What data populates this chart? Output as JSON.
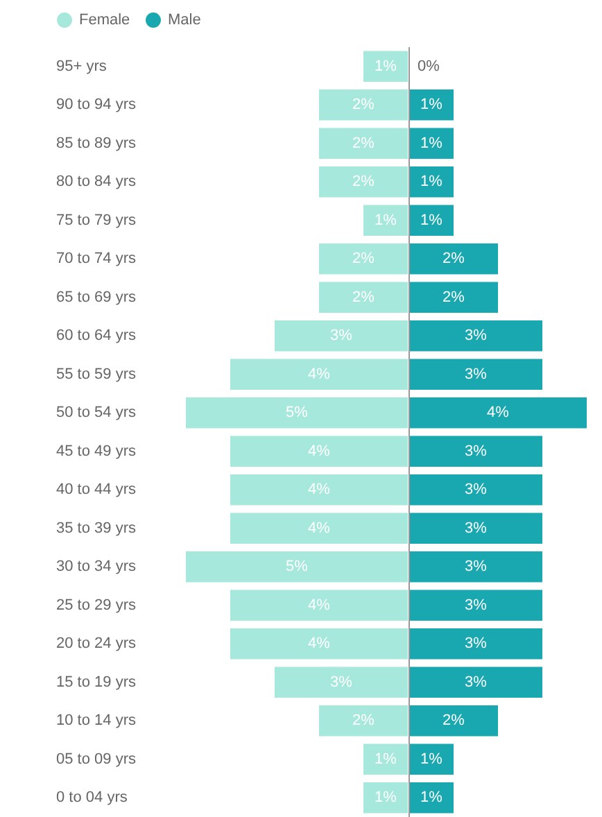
{
  "chart_data": [
    {
      "type": "bar",
      "orientation": "horizontal",
      "legend": "top left",
      "xlim": [
        5,
        0
      ],
      "tick_labels": "y",
      "categories": [
        "95+ yrs",
        "90 to 94 yrs",
        "85 to 89 yrs",
        "80 to 84 yrs",
        "75 to 79 yrs",
        "70 to 74 yrs",
        "65 to 69 yrs",
        "60 to 64 yrs",
        "55 to 59 yrs",
        "50 to 54 yrs",
        "45 to 49 yrs",
        "40 to 44 yrs",
        "35 to 39 yrs",
        "30 to 34 yrs",
        "25 to 29 yrs",
        "20 to 24 yrs",
        "15 to 19 yrs",
        "10 to 14 yrs",
        "05 to 09 yrs",
        "0 to 04 yrs"
      ],
      "series": [
        {
          "name": "Female",
          "color": "#a7e8dd",
          "values": [
            1,
            2,
            2,
            2,
            1,
            2,
            2,
            3,
            4,
            5,
            4,
            4,
            4,
            5,
            4,
            4,
            3,
            2,
            1,
            1
          ],
          "value_labels": [
            "1%",
            "2%",
            "2%",
            "2%",
            "1%",
            "2%",
            "2%",
            "3%",
            "4%",
            "5%",
            "4%",
            "4%",
            "4%",
            "5%",
            "4%",
            "4%",
            "3%",
            "2%",
            "1%",
            "1%"
          ]
        }
      ]
    },
    {
      "type": "bar",
      "orientation": "horizontal",
      "legend": "top left",
      "xlim": [
        0,
        4
      ],
      "tick_labels": false,
      "categories": [
        null,
        null,
        null,
        null,
        null,
        null,
        null,
        null,
        null,
        null,
        null,
        null,
        null,
        null,
        null,
        null,
        null,
        null,
        null,
        null
      ],
      "series": [
        {
          "name": "Male",
          "color": "#19a7b0",
          "values": [
            0,
            1,
            1,
            1,
            1,
            2,
            2,
            3,
            3,
            4,
            3,
            3,
            3,
            3,
            3,
            3,
            3,
            2,
            1,
            1
          ],
          "value_labels": [
            "0%",
            "1%",
            "1%",
            "1%",
            "1%",
            "2%",
            "2%",
            "3%",
            "3%",
            "4%",
            "3%",
            "3%",
            "3%",
            "3%",
            "3%",
            "3%",
            "3%",
            "2%",
            "1%",
            "1%"
          ]
        }
      ]
    }
  ]
}
